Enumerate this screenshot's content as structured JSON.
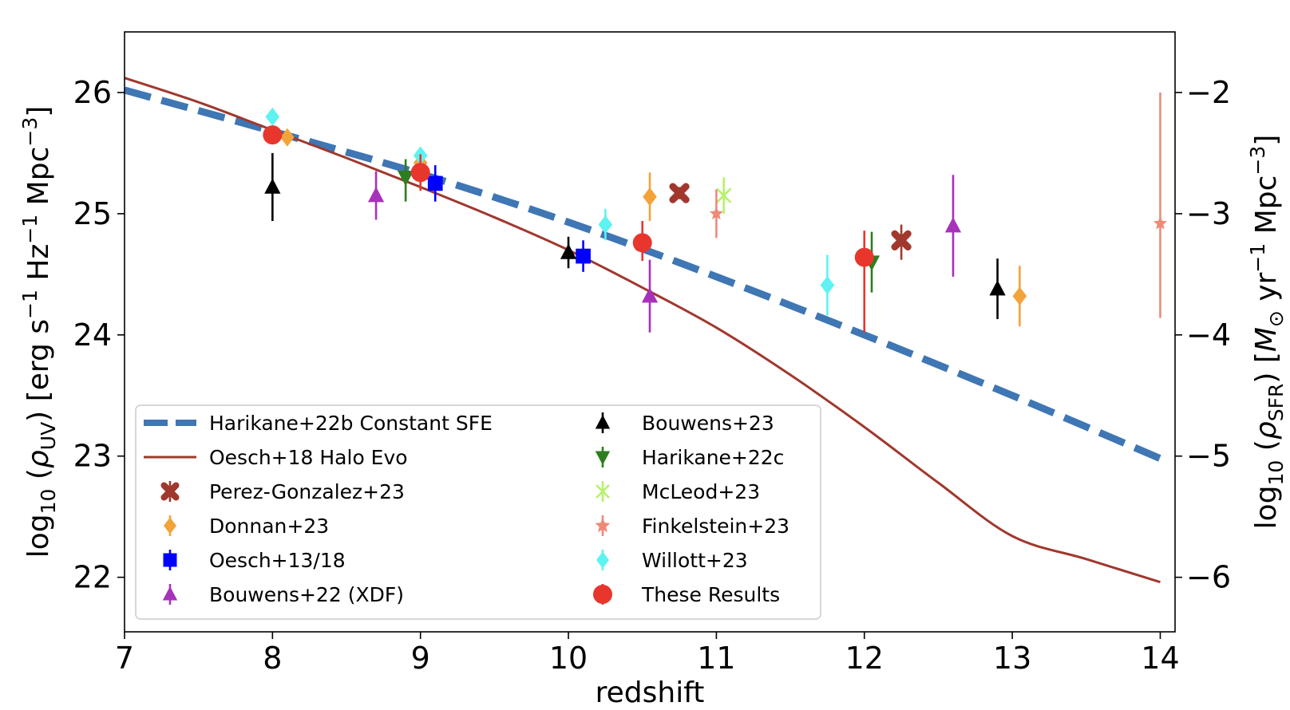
{
  "chart_data": {
    "type": "scatter",
    "xlabel": "redshift",
    "ylabel_left": "log10 (ρUV) [erg s−1 Hz−1 Mpc−3]",
    "ylabel_right": "log10 (ρSFR) [M⊙ yr−1 Mpc−3]",
    "xlim": [
      7,
      14.1
    ],
    "ylim": [
      21.55,
      26.5
    ],
    "ylim_right": [
      -6.45,
      -1.5
    ],
    "x_ticks": [
      7,
      8,
      9,
      10,
      11,
      12,
      13,
      14
    ],
    "y_ticks": [
      22,
      23,
      24,
      25,
      26
    ],
    "y_ticks_right": [
      -6,
      -5,
      -4,
      -3,
      -2
    ],
    "x_tick_labels": [
      "7",
      "8",
      "9",
      "10",
      "11",
      "12",
      "13",
      "14"
    ],
    "y_tick_labels": [
      "22",
      "23",
      "24",
      "25",
      "26"
    ],
    "y_tick_labels_right": [
      "−6",
      "−5",
      "−4",
      "−3",
      "−2"
    ],
    "legend_position": "lower-left",
    "lines": [
      {
        "name": "Harikane+22b Constant SFE",
        "color": "#3f76b4",
        "style": "dashed",
        "x": [
          7,
          8,
          9,
          10,
          11,
          12,
          13,
          14
        ],
        "y": [
          26.02,
          25.68,
          25.33,
          24.93,
          24.48,
          24.0,
          23.5,
          22.98
        ]
      },
      {
        "name": "Oesch+18 Halo Evo",
        "color": "#a0382e",
        "style": "solid",
        "x": [
          7,
          7.5,
          8,
          8.5,
          9,
          9.5,
          10,
          10.5,
          11,
          11.5,
          12,
          12.5,
          13,
          13.5,
          14
        ],
        "y": [
          26.12,
          25.92,
          25.69,
          25.46,
          25.22,
          24.97,
          24.7,
          24.39,
          24.06,
          23.67,
          23.24,
          22.78,
          22.34,
          22.15,
          21.96
        ]
      }
    ],
    "series": [
      {
        "name": "Perez-Gonzalez+23",
        "marker": "X",
        "color": "#a0382e",
        "points": [
          {
            "x": 10.75,
            "y": 25.17,
            "yerr_lo": 0.05,
            "yerr_hi": 0.05
          },
          {
            "x": 12.25,
            "y": 24.78,
            "yerr_lo": 0.16,
            "yerr_hi": 0.13
          }
        ]
      },
      {
        "name": "Donnan+23",
        "marker": "diamond",
        "color": "#f2a33a",
        "points": [
          {
            "x": 8.1,
            "y": 25.63,
            "yerr_lo": 0.05,
            "yerr_hi": 0.05
          },
          {
            "x": 9.0,
            "y": 25.42,
            "yerr_lo": 0.08,
            "yerr_hi": 0.08
          },
          {
            "x": 10.55,
            "y": 25.14,
            "yerr_lo": 0.2,
            "yerr_hi": 0.2
          },
          {
            "x": 13.05,
            "y": 24.32,
            "yerr_lo": 0.25,
            "yerr_hi": 0.25
          }
        ]
      },
      {
        "name": "Oesch+13/18",
        "marker": "square",
        "color": "#0000ff",
        "points": [
          {
            "x": 9.1,
            "y": 25.25,
            "yerr_lo": 0.15,
            "yerr_hi": 0.15
          },
          {
            "x": 10.1,
            "y": 24.65,
            "yerr_lo": 0.13,
            "yerr_hi": 0.13
          }
        ]
      },
      {
        "name": "Bouwens+22 (XDF)",
        "marker": "triangle-up",
        "color": "#a732ba",
        "points": [
          {
            "x": 8.7,
            "y": 25.15,
            "yerr_lo": 0.2,
            "yerr_hi": 0.2
          },
          {
            "x": 10.55,
            "y": 24.32,
            "yerr_lo": 0.3,
            "yerr_hi": 0.3
          },
          {
            "x": 12.6,
            "y": 24.9,
            "yerr_lo": 0.42,
            "yerr_hi": 0.42
          }
        ]
      },
      {
        "name": "Bouwens+23",
        "marker": "triangle-up",
        "color": "#000000",
        "points": [
          {
            "x": 8.0,
            "y": 25.22,
            "yerr_lo": 0.28,
            "yerr_hi": 0.28
          },
          {
            "x": 10.0,
            "y": 24.68,
            "yerr_lo": 0.13,
            "yerr_hi": 0.13
          },
          {
            "x": 12.9,
            "y": 24.38,
            "yerr_lo": 0.25,
            "yerr_hi": 0.25
          }
        ]
      },
      {
        "name": "Harikane+22c",
        "marker": "triangle-down",
        "color": "#2e7d1f",
        "points": [
          {
            "x": 8.9,
            "y": 25.3,
            "yerr_lo": 0.2,
            "yerr_hi": 0.15
          },
          {
            "x": 12.05,
            "y": 24.6,
            "yerr_lo": 0.25,
            "yerr_hi": 0.25
          }
        ]
      },
      {
        "name": "McLeod+23",
        "marker": "x",
        "color": "#b6f26b",
        "points": [
          {
            "x": 11.05,
            "y": 25.15,
            "yerr_lo": 0.15,
            "yerr_hi": 0.15
          }
        ]
      },
      {
        "name": "Finkelstein+23",
        "marker": "star",
        "color": "#ee8a78",
        "points": [
          {
            "x": 11.0,
            "y": 25.0,
            "yerr_lo": 0.2,
            "yerr_hi": 0.2
          },
          {
            "x": 14.0,
            "y": 24.92,
            "yerr_lo": 0.78,
            "yerr_hi": 1.08
          }
        ]
      },
      {
        "name": "Willott+23",
        "marker": "diamond",
        "color": "#5ef2f2",
        "points": [
          {
            "x": 8.0,
            "y": 25.8,
            "yerr_lo": 0.05,
            "yerr_hi": 0.05
          },
          {
            "x": 9.0,
            "y": 25.48,
            "yerr_lo": 0.06,
            "yerr_hi": 0.06
          },
          {
            "x": 10.25,
            "y": 24.91,
            "yerr_lo": 0.13,
            "yerr_hi": 0.13
          },
          {
            "x": 11.75,
            "y": 24.41,
            "yerr_lo": 0.25,
            "yerr_hi": 0.25
          }
        ]
      },
      {
        "name": "These Results",
        "marker": "circle",
        "color": "#e8362d",
        "points": [
          {
            "x": 8.0,
            "y": 25.65,
            "yerr_lo": 0.05,
            "yerr_hi": 0.05
          },
          {
            "x": 9.0,
            "y": 25.34,
            "yerr_lo": 0.15,
            "yerr_hi": 0.15
          },
          {
            "x": 10.5,
            "y": 24.76,
            "yerr_lo": 0.15,
            "yerr_hi": 0.18
          },
          {
            "x": 12.0,
            "y": 24.64,
            "yerr_lo": 0.62,
            "yerr_hi": 0.22
          }
        ]
      }
    ],
    "legend": {
      "left": [
        "Harikane+22b Constant SFE",
        "Oesch+18 Halo Evo",
        "Perez-Gonzalez+23",
        "Donnan+23",
        "Oesch+13/18",
        "Bouwens+22 (XDF)"
      ],
      "right": [
        "Bouwens+23",
        "Harikane+22c",
        "McLeod+23",
        "Finkelstein+23",
        "Willott+23",
        "These Results"
      ]
    }
  }
}
